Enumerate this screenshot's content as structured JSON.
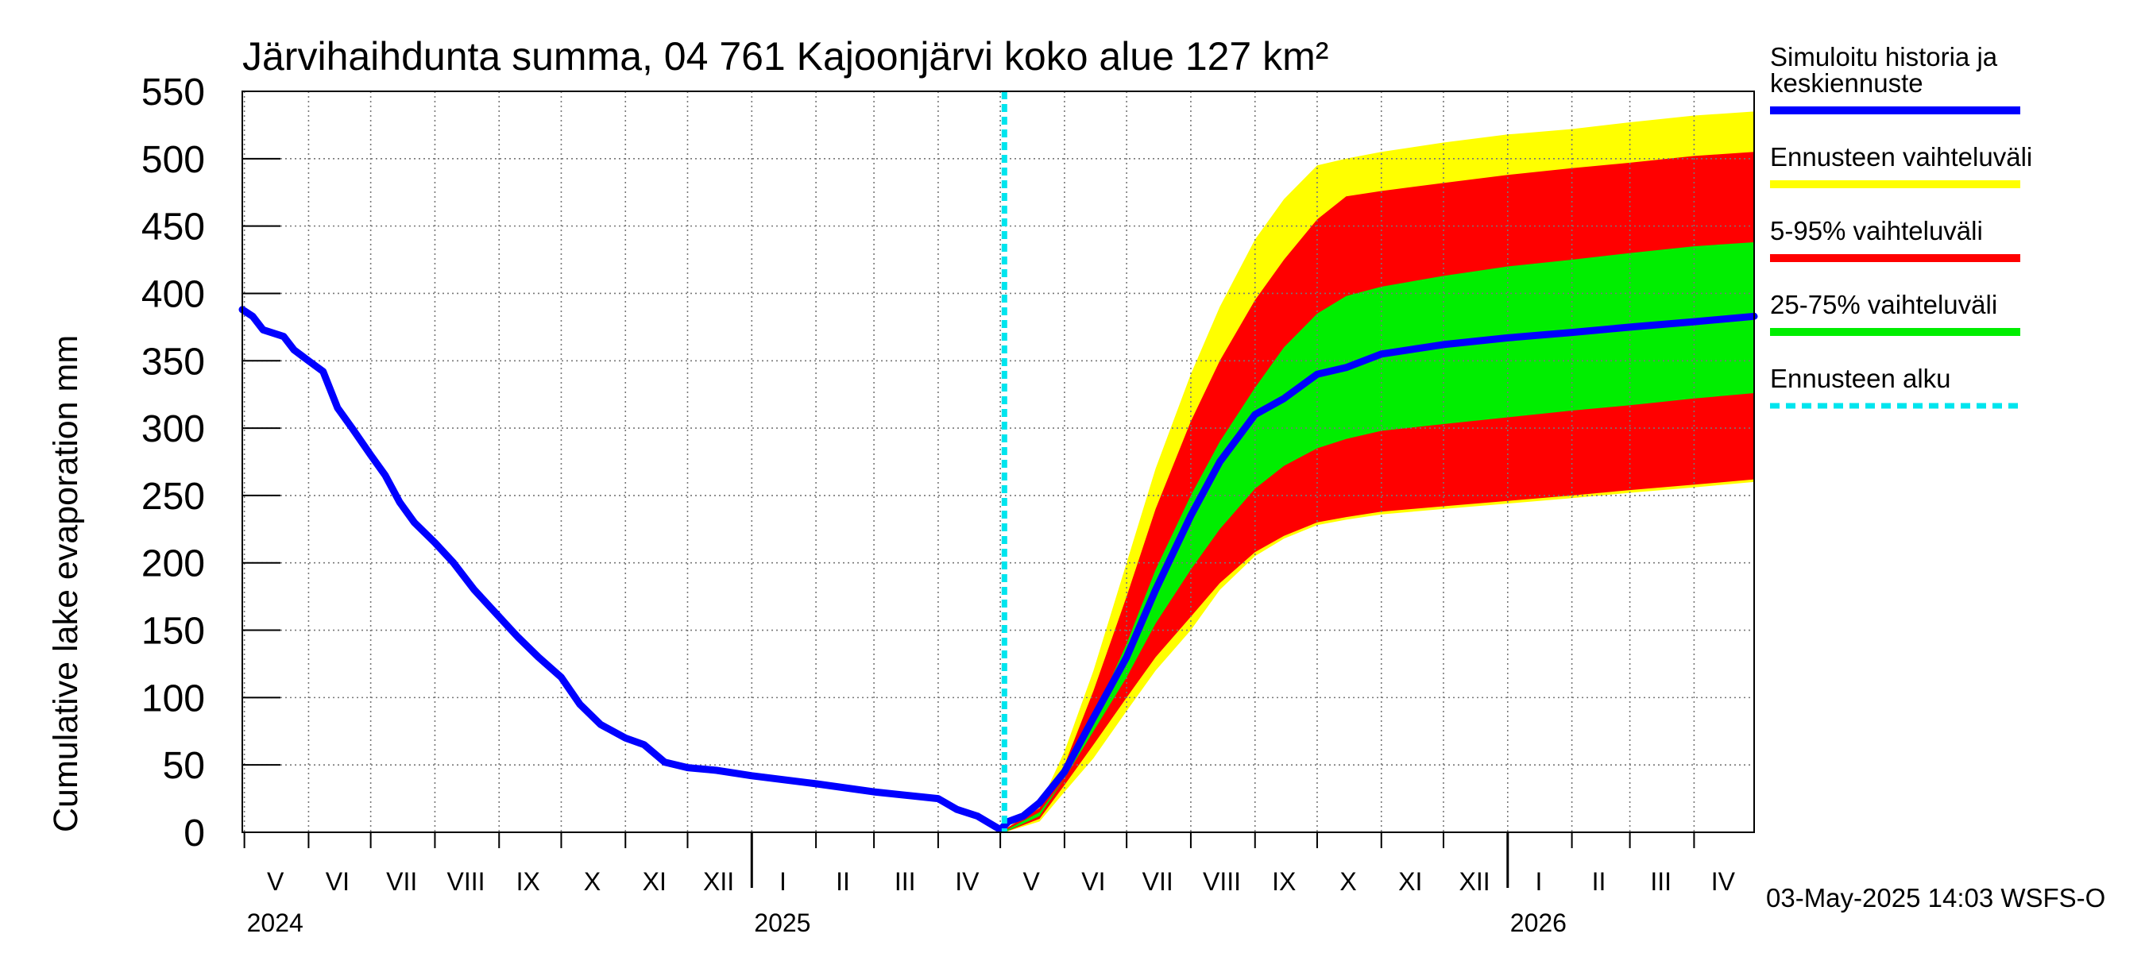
{
  "chart_data": {
    "type": "area",
    "title": "Järvihaihdunta summa, 04 761 Kajoonjärvi koko alue 127 km²",
    "ylabel": "Cumulative lake evaporation   mm",
    "xlabel": "",
    "ylim": [
      0,
      550
    ],
    "yticks": [
      "0",
      "50",
      "100",
      "150",
      "200",
      "250",
      "300",
      "350",
      "400",
      "450",
      "500",
      "550"
    ],
    "x_range": [
      "2024-04-30",
      "2026-04-30"
    ],
    "grid": true,
    "legend_placement": "right",
    "forecast_start": "2025-05-03",
    "month_labels": [
      {
        "label": "V",
        "date": "2024-05-16"
      },
      {
        "label": "VI",
        "date": "2024-06-15"
      },
      {
        "label": "VII",
        "date": "2024-07-16"
      },
      {
        "label": "VIII",
        "date": "2024-08-16"
      },
      {
        "label": "IX",
        "date": "2024-09-15"
      },
      {
        "label": "X",
        "date": "2024-10-16"
      },
      {
        "label": "XI",
        "date": "2024-11-15"
      },
      {
        "label": "XII",
        "date": "2024-12-16"
      },
      {
        "label": "I",
        "date": "2025-01-16"
      },
      {
        "label": "II",
        "date": "2025-02-14"
      },
      {
        "label": "III",
        "date": "2025-03-16"
      },
      {
        "label": "IV",
        "date": "2025-04-15"
      },
      {
        "label": "V",
        "date": "2025-05-16"
      },
      {
        "label": "VI",
        "date": "2025-06-15"
      },
      {
        "label": "VII",
        "date": "2025-07-16"
      },
      {
        "label": "VIII",
        "date": "2025-08-16"
      },
      {
        "label": "IX",
        "date": "2025-09-15"
      },
      {
        "label": "X",
        "date": "2025-10-16"
      },
      {
        "label": "XI",
        "date": "2025-11-15"
      },
      {
        "label": "XII",
        "date": "2025-12-16"
      },
      {
        "label": "I",
        "date": "2026-01-16"
      },
      {
        "label": "II",
        "date": "2026-02-14"
      },
      {
        "label": "III",
        "date": "2026-03-16"
      },
      {
        "label": "IV",
        "date": "2026-04-15"
      }
    ],
    "month_boundaries": [
      "2024-05-01",
      "2024-06-01",
      "2024-07-01",
      "2024-08-01",
      "2024-09-01",
      "2024-10-01",
      "2024-11-01",
      "2024-12-01",
      "2025-01-01",
      "2025-02-01",
      "2025-03-01",
      "2025-04-01",
      "2025-05-01",
      "2025-06-01",
      "2025-07-01",
      "2025-08-01",
      "2025-09-01",
      "2025-10-01",
      "2025-11-01",
      "2025-12-01",
      "2026-01-01",
      "2026-02-01",
      "2026-03-01",
      "2026-04-01"
    ],
    "year_boundaries": [
      "2025-01-01",
      "2026-01-01"
    ],
    "year_labels": [
      {
        "label": "2024",
        "date": "2024-05-01"
      },
      {
        "label": "2025",
        "date": "2025-01-01"
      },
      {
        "label": "2026",
        "date": "2026-01-01"
      }
    ],
    "series": [
      {
        "name": "Ennusteen vaihteluväli",
        "color": "#ffff00",
        "upper": [
          [
            "2025-05-03",
            2
          ],
          [
            "2025-05-20",
            20
          ],
          [
            "2025-06-01",
            60
          ],
          [
            "2025-06-15",
            120
          ],
          [
            "2025-07-01",
            200
          ],
          [
            "2025-07-15",
            270
          ],
          [
            "2025-08-01",
            340
          ],
          [
            "2025-08-15",
            390
          ],
          [
            "2025-09-01",
            440
          ],
          [
            "2025-09-15",
            470
          ],
          [
            "2025-10-01",
            495
          ],
          [
            "2025-10-15",
            500
          ],
          [
            "2025-11-01",
            505
          ],
          [
            "2025-12-01",
            512
          ],
          [
            "2026-01-01",
            518
          ],
          [
            "2026-02-01",
            522
          ],
          [
            "2026-03-01",
            527
          ],
          [
            "2026-04-01",
            532
          ],
          [
            "2026-04-30",
            535
          ]
        ],
        "lower": [
          [
            "2025-05-03",
            0
          ],
          [
            "2025-05-20",
            8
          ],
          [
            "2025-06-01",
            30
          ],
          [
            "2025-06-15",
            55
          ],
          [
            "2025-07-01",
            90
          ],
          [
            "2025-07-15",
            120
          ],
          [
            "2025-08-01",
            150
          ],
          [
            "2025-08-15",
            180
          ],
          [
            "2025-09-01",
            205
          ],
          [
            "2025-09-15",
            218
          ],
          [
            "2025-10-01",
            228
          ],
          [
            "2025-10-15",
            232
          ],
          [
            "2025-11-01",
            236
          ],
          [
            "2025-12-01",
            240
          ],
          [
            "2026-01-01",
            244
          ],
          [
            "2026-02-01",
            248
          ],
          [
            "2026-03-01",
            252
          ],
          [
            "2026-04-01",
            256
          ],
          [
            "2026-04-30",
            260
          ]
        ]
      },
      {
        "name": "5-95% vaihteluväli",
        "color": "#ff0000",
        "upper": [
          [
            "2025-05-03",
            2
          ],
          [
            "2025-05-20",
            18
          ],
          [
            "2025-06-01",
            50
          ],
          [
            "2025-06-15",
            105
          ],
          [
            "2025-07-01",
            175
          ],
          [
            "2025-07-15",
            240
          ],
          [
            "2025-08-01",
            305
          ],
          [
            "2025-08-15",
            350
          ],
          [
            "2025-09-01",
            395
          ],
          [
            "2025-09-15",
            425
          ],
          [
            "2025-10-01",
            455
          ],
          [
            "2025-10-15",
            472
          ],
          [
            "2025-11-01",
            476
          ],
          [
            "2025-12-01",
            482
          ],
          [
            "2026-01-01",
            488
          ],
          [
            "2026-02-01",
            493
          ],
          [
            "2026-03-01",
            497
          ],
          [
            "2026-04-01",
            502
          ],
          [
            "2026-04-30",
            505
          ]
        ],
        "lower": [
          [
            "2025-05-03",
            0
          ],
          [
            "2025-05-20",
            10
          ],
          [
            "2025-06-01",
            35
          ],
          [
            "2025-06-15",
            65
          ],
          [
            "2025-07-01",
            100
          ],
          [
            "2025-07-15",
            130
          ],
          [
            "2025-08-01",
            160
          ],
          [
            "2025-08-15",
            185
          ],
          [
            "2025-09-01",
            208
          ],
          [
            "2025-09-15",
            220
          ],
          [
            "2025-10-01",
            230
          ],
          [
            "2025-10-15",
            234
          ],
          [
            "2025-11-01",
            238
          ],
          [
            "2025-12-01",
            242
          ],
          [
            "2026-01-01",
            246
          ],
          [
            "2026-02-01",
            250
          ],
          [
            "2026-03-01",
            254
          ],
          [
            "2026-04-01",
            258
          ],
          [
            "2026-04-30",
            262
          ]
        ]
      },
      {
        "name": "25-75% vaihteluväli",
        "color": "#00ee00",
        "upper": [
          [
            "2025-05-03",
            1
          ],
          [
            "2025-05-20",
            15
          ],
          [
            "2025-06-01",
            40
          ],
          [
            "2025-06-15",
            85
          ],
          [
            "2025-07-01",
            140
          ],
          [
            "2025-07-15",
            195
          ],
          [
            "2025-08-01",
            250
          ],
          [
            "2025-08-15",
            290
          ],
          [
            "2025-09-01",
            330
          ],
          [
            "2025-09-15",
            360
          ],
          [
            "2025-10-01",
            385
          ],
          [
            "2025-10-15",
            398
          ],
          [
            "2025-11-01",
            405
          ],
          [
            "2025-12-01",
            413
          ],
          [
            "2026-01-01",
            420
          ],
          [
            "2026-02-01",
            425
          ],
          [
            "2026-03-01",
            430
          ],
          [
            "2026-04-01",
            435
          ],
          [
            "2026-04-30",
            438
          ]
        ],
        "lower": [
          [
            "2025-05-03",
            0
          ],
          [
            "2025-05-20",
            12
          ],
          [
            "2025-06-01",
            40
          ],
          [
            "2025-06-15",
            75
          ],
          [
            "2025-07-01",
            115
          ],
          [
            "2025-07-15",
            155
          ],
          [
            "2025-08-01",
            195
          ],
          [
            "2025-08-15",
            225
          ],
          [
            "2025-09-01",
            255
          ],
          [
            "2025-09-15",
            272
          ],
          [
            "2025-10-01",
            285
          ],
          [
            "2025-10-15",
            292
          ],
          [
            "2025-11-01",
            298
          ],
          [
            "2025-12-01",
            303
          ],
          [
            "2026-01-01",
            308
          ],
          [
            "2026-02-01",
            313
          ],
          [
            "2026-03-01",
            317
          ],
          [
            "2026-04-01",
            322
          ],
          [
            "2026-04-30",
            326
          ]
        ]
      },
      {
        "name": "Simuloitu historia ja keskiennuste",
        "color": "#0000ff",
        "points": [
          [
            "2024-04-30",
            388
          ],
          [
            "2024-05-05",
            383
          ],
          [
            "2024-05-10",
            373
          ],
          [
            "2024-05-20",
            368
          ],
          [
            "2024-05-25",
            358
          ],
          [
            "2024-06-01",
            350
          ],
          [
            "2024-06-08",
            342
          ],
          [
            "2024-06-15",
            315
          ],
          [
            "2024-06-22",
            300
          ],
          [
            "2024-07-01",
            280
          ],
          [
            "2024-07-08",
            265
          ],
          [
            "2024-07-15",
            245
          ],
          [
            "2024-07-22",
            230
          ],
          [
            "2024-08-01",
            215
          ],
          [
            "2024-08-10",
            200
          ],
          [
            "2024-08-20",
            180
          ],
          [
            "2024-09-01",
            160
          ],
          [
            "2024-09-10",
            145
          ],
          [
            "2024-09-20",
            130
          ],
          [
            "2024-10-01",
            115
          ],
          [
            "2024-10-10",
            95
          ],
          [
            "2024-10-20",
            80
          ],
          [
            "2024-11-01",
            70
          ],
          [
            "2024-11-10",
            65
          ],
          [
            "2024-11-20",
            52
          ],
          [
            "2024-12-01",
            48
          ],
          [
            "2024-12-15",
            46
          ],
          [
            "2025-01-01",
            42
          ],
          [
            "2025-02-01",
            36
          ],
          [
            "2025-03-01",
            30
          ],
          [
            "2025-04-01",
            25
          ],
          [
            "2025-04-10",
            17
          ],
          [
            "2025-04-20",
            12
          ],
          [
            "2025-05-01",
            2
          ],
          [
            "2025-05-05",
            8
          ],
          [
            "2025-05-12",
            12
          ],
          [
            "2025-05-20",
            22
          ],
          [
            "2025-06-01",
            45
          ],
          [
            "2025-06-15",
            85
          ],
          [
            "2025-07-01",
            130
          ],
          [
            "2025-07-15",
            180
          ],
          [
            "2025-08-01",
            235
          ],
          [
            "2025-08-15",
            275
          ],
          [
            "2025-09-01",
            310
          ],
          [
            "2025-09-15",
            322
          ],
          [
            "2025-10-01",
            340
          ],
          [
            "2025-10-15",
            345
          ],
          [
            "2025-11-01",
            355
          ],
          [
            "2025-12-01",
            362
          ],
          [
            "2026-01-01",
            367
          ],
          [
            "2026-02-01",
            371
          ],
          [
            "2026-03-01",
            375
          ],
          [
            "2026-04-01",
            379
          ],
          [
            "2026-04-30",
            383
          ]
        ]
      }
    ]
  },
  "legend": {
    "items": [
      {
        "label_lines": [
          "Simuloitu historia ja",
          "keskiennuste"
        ],
        "color": "#0000ff",
        "dashed": false
      },
      {
        "label_lines": [
          "Ennusteen vaihteluväli"
        ],
        "color": "#ffff00",
        "dashed": false
      },
      {
        "label_lines": [
          "5-95% vaihteluväli"
        ],
        "color": "#ff0000",
        "dashed": false
      },
      {
        "label_lines": [
          "25-75% vaihteluväli"
        ],
        "color": "#00ee00",
        "dashed": false
      },
      {
        "label_lines": [
          "Ennusteen alku"
        ],
        "color": "#00e5ee",
        "dashed": true
      }
    ]
  },
  "footer": {
    "timestamp": "03-May-2025 14:03 WSFS-O"
  }
}
